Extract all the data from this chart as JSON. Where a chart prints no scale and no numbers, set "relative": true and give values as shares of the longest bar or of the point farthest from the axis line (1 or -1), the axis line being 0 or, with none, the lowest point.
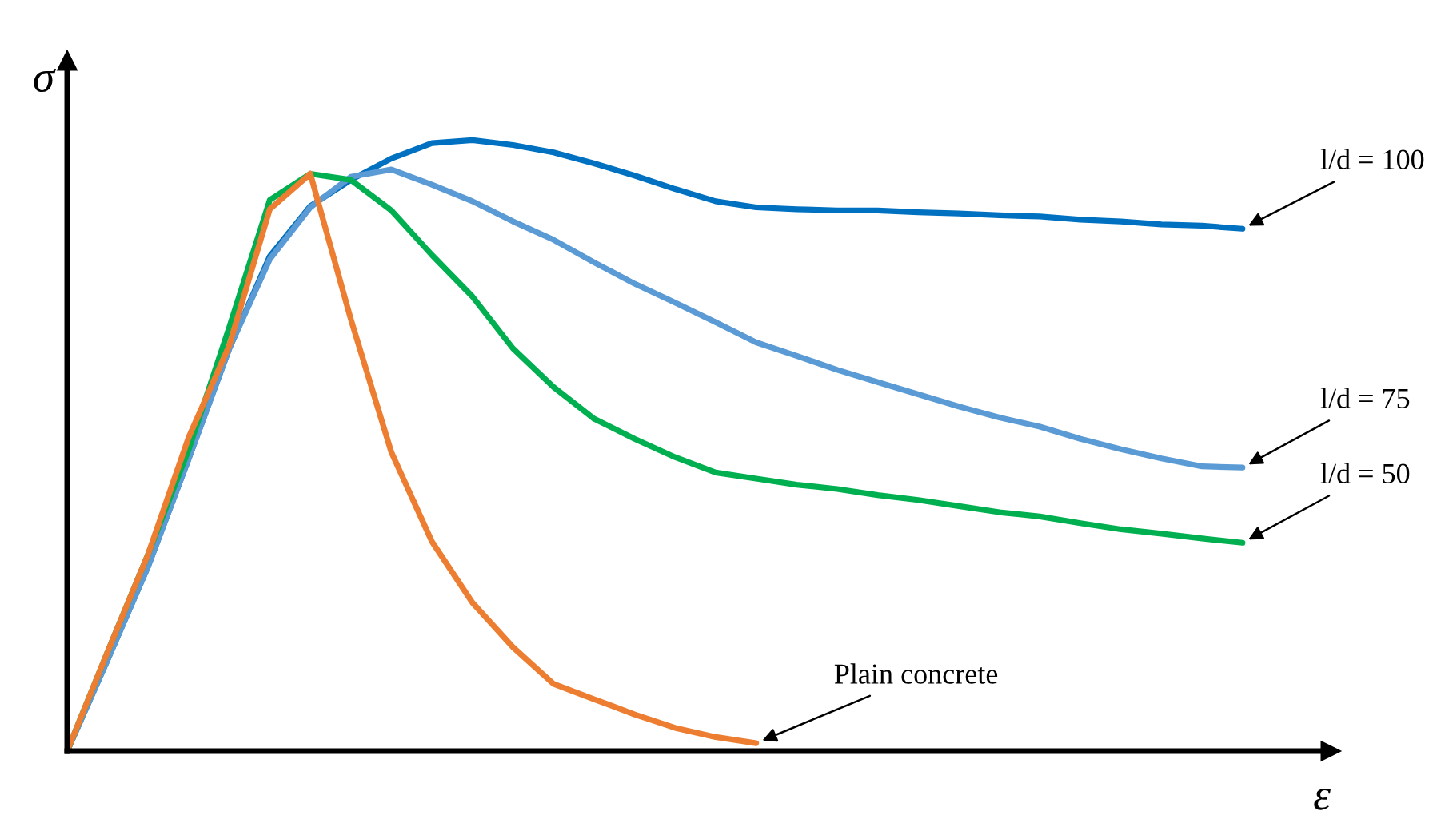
{
  "chart_data": {
    "type": "line",
    "relative": true,
    "xlabel": "ε",
    "ylabel": "σ",
    "marker": "none",
    "line_style": "solid",
    "categories": [
      null,
      null,
      null,
      null,
      null,
      null,
      null,
      null,
      null,
      null,
      null,
      null,
      null,
      null,
      null,
      null,
      null,
      null,
      null,
      null,
      null,
      null,
      null,
      null,
      null,
      null,
      null,
      null,
      null,
      null
    ],
    "series": [
      {
        "name": "l/d = 100",
        "color": "#0070c0",
        "values": [
          0,
          0.15,
          0.303,
          0.479,
          0.659,
          0.81,
          0.892,
          0.935,
          0.97,
          0.995,
          1.0,
          0.992,
          0.98,
          0.962,
          0.942,
          0.92,
          0.9,
          0.89,
          0.887,
          0.885,
          0.885,
          0.882,
          0.88,
          0.877,
          0.875,
          0.87,
          0.867,
          0.862,
          0.86,
          0.855
        ]
      },
      {
        "name": "l/d = 75",
        "color": "#5b9bd5",
        "values": [
          0,
          0.15,
          0.303,
          0.479,
          0.659,
          0.805,
          0.89,
          0.94,
          0.952,
          0.927,
          0.9,
          0.867,
          0.837,
          0.8,
          0.765,
          0.734,
          0.702,
          0.669,
          0.647,
          0.624,
          0.604,
          0.584,
          0.564,
          0.546,
          0.531,
          0.511,
          0.494,
          0.479,
          0.466,
          0.464
        ]
      },
      {
        "name": "l/d = 50",
        "color": "#00b050",
        "values": [
          0,
          0.163,
          0.323,
          0.494,
          0.694,
          0.902,
          0.945,
          0.935,
          0.885,
          0.812,
          0.744,
          0.659,
          0.596,
          0.544,
          0.511,
          0.481,
          0.456,
          0.446,
          0.436,
          0.429,
          0.419,
          0.411,
          0.401,
          0.391,
          0.384,
          0.373,
          0.363,
          0.356,
          0.348,
          0.341
        ]
      },
      {
        "name": "Plain concrete",
        "color": "#ed7d31",
        "values": [
          0,
          0.163,
          0.323,
          0.514,
          0.664,
          0.887,
          0.945,
          0.707,
          0.489,
          0.343,
          0.243,
          0.17,
          0.11,
          0.085,
          0.06,
          0.038,
          0.023,
          0.013,
          null,
          null,
          null,
          null,
          null,
          null,
          null,
          null,
          null,
          null,
          null,
          null
        ]
      }
    ]
  }
}
